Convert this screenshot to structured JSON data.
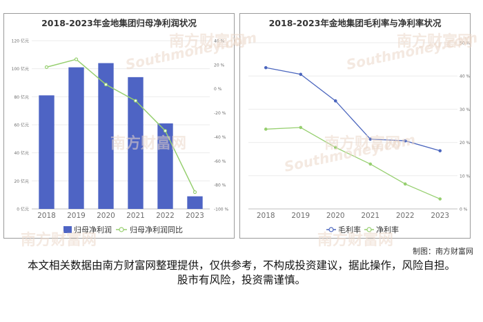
{
  "charts": [
    {
      "title": "2018-2023年金地集团归母净利润状况",
      "legend": [
        "归母净利润",
        "归母净利润同比"
      ]
    },
    {
      "title": "2018-2023年金地集团毛利率与净利率状况",
      "legend": [
        "毛利率",
        "净利率"
      ]
    }
  ],
  "chart_data": [
    {
      "type": "bar",
      "categories": [
        "2018",
        "2019",
        "2020",
        "2021",
        "2022",
        "2023"
      ],
      "series": [
        {
          "name": "归母净利润",
          "type": "bar",
          "axis": "left",
          "values": [
            81,
            101,
            104,
            94,
            61,
            9
          ],
          "color": "#4e64c4"
        },
        {
          "name": "归母净利润同比",
          "type": "line",
          "axis": "right",
          "values": [
            18.0,
            24.5,
            3.5,
            -10.0,
            -35.0,
            -86.0
          ],
          "color": "#96cf6f"
        }
      ],
      "y_left": {
        "ticks": [
          "0 亿元",
          "20 亿元",
          "40 亿元",
          "60 亿元",
          "80 亿元",
          "100 亿元",
          "120 亿元"
        ],
        "range": [
          0,
          120
        ]
      },
      "y_right": {
        "ticks": [
          "-100 %",
          "-80 %",
          "-60 %",
          "-40 %",
          "-20 %",
          "0 %",
          "20 %",
          "40 %"
        ],
        "range": [
          -100,
          40
        ]
      }
    },
    {
      "type": "line",
      "categories": [
        "2018",
        "2019",
        "2020",
        "2021",
        "2022",
        "2023"
      ],
      "series": [
        {
          "name": "毛利率",
          "values": [
            42.5,
            40.5,
            32.5,
            21.0,
            20.5,
            17.5
          ],
          "color": "#4b66be"
        },
        {
          "name": "净利率",
          "values": [
            24.0,
            24.5,
            18.5,
            13.5,
            7.5,
            3.0
          ],
          "color": "#96cf6f"
        }
      ],
      "y_right": {
        "ticks": [
          "0 %",
          "10 %",
          "20 %",
          "30 %",
          "40 %",
          "50 %"
        ],
        "range": [
          0,
          50
        ]
      }
    }
  ],
  "footer": {
    "credit": "制图：南方财富网",
    "disclaimer": "本文相关数据由南方财富网整理提供，仅供参考，不构成投资建议，据此操作，风险自担。股市有风险，投资需谨慎。"
  },
  "watermark": {
    "text_cn": "南方财富网",
    "text_en": "Southmoney.com"
  }
}
